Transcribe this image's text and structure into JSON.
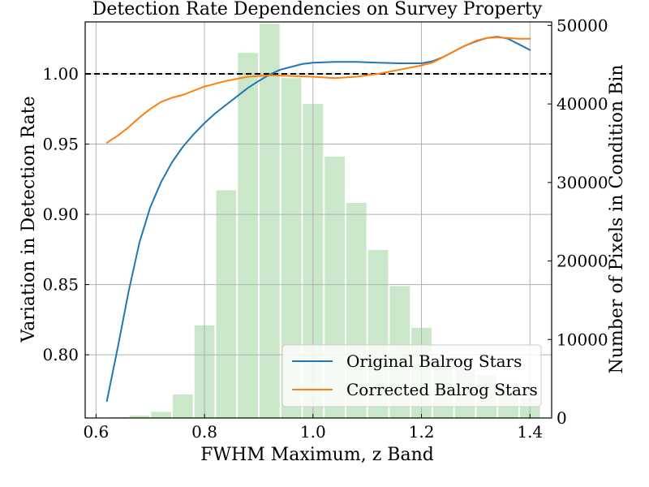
{
  "chart_data": {
    "type": "line",
    "title": "Detection Rate Dependencies on Survey Property",
    "xlabel": "FWHM Maximum, z Band",
    "ylabel": "Variation in Detection Rate",
    "ylabel_right": "Number of Pixels in Condition Bin",
    "xlim": [
      0.58,
      1.44
    ],
    "ylim": [
      0.755,
      1.037
    ],
    "ylim_right": [
      0,
      50450
    ],
    "x_ticks": [
      "0.6",
      "0.8",
      "1.0",
      "1.2",
      "1.4"
    ],
    "y_ticks": [
      "0.80",
      "0.85",
      "0.90",
      "0.95",
      "1.00"
    ],
    "y_ticks_right": [
      "0",
      "10000",
      "20000",
      "30000",
      "40000",
      "50000"
    ],
    "grid": true,
    "reference_line": 1.0,
    "legend_position": "lower-right",
    "series": [
      {
        "name": "Original Balrog Stars",
        "color": "#1f77b4",
        "x": [
          0.62,
          0.64,
          0.66,
          0.68,
          0.7,
          0.72,
          0.74,
          0.76,
          0.78,
          0.8,
          0.82,
          0.84,
          0.86,
          0.88,
          0.9,
          0.92,
          0.94,
          0.96,
          0.98,
          1.0,
          1.04,
          1.08,
          1.12,
          1.16,
          1.2,
          1.22,
          1.24,
          1.26,
          1.28,
          1.3,
          1.32,
          1.34,
          1.36,
          1.38,
          1.4
        ],
        "values": [
          0.767,
          0.805,
          0.845,
          0.88,
          0.905,
          0.923,
          0.937,
          0.948,
          0.957,
          0.965,
          0.972,
          0.978,
          0.984,
          0.99,
          0.995,
          0.9995,
          1.003,
          1.005,
          1.007,
          1.008,
          1.0085,
          1.0085,
          1.008,
          1.0075,
          1.0075,
          1.009,
          1.012,
          1.016,
          1.02,
          1.023,
          1.0255,
          1.0265,
          1.025,
          1.021,
          1.017
        ]
      },
      {
        "name": "Corrected Balrog Stars",
        "color": "#ff7f0e",
        "x": [
          0.62,
          0.64,
          0.66,
          0.68,
          0.7,
          0.72,
          0.74,
          0.76,
          0.8,
          0.84,
          0.88,
          0.92,
          0.96,
          1.0,
          1.04,
          1.08,
          1.12,
          1.16,
          1.2,
          1.22,
          1.24,
          1.26,
          1.28,
          1.3,
          1.32,
          1.34,
          1.36,
          1.38,
          1.4
        ],
        "values": [
          0.951,
          0.956,
          0.962,
          0.969,
          0.975,
          0.98,
          0.983,
          0.985,
          0.991,
          0.995,
          0.998,
          0.999,
          0.9985,
          0.998,
          0.997,
          0.998,
          1.0,
          1.003,
          1.006,
          1.008,
          1.012,
          1.016,
          1.02,
          1.0235,
          1.0255,
          1.026,
          1.0255,
          1.025,
          1.025
        ]
      }
    ],
    "histogram": {
      "color": "#2ca02c",
      "opacity": 0.25,
      "bin_edges": [
        0.62,
        0.66,
        0.7,
        0.74,
        0.78,
        0.82,
        0.86,
        0.9,
        0.94,
        0.98,
        1.02,
        1.06,
        1.1,
        1.14,
        1.18,
        1.22,
        1.26,
        1.3,
        1.34,
        1.38,
        1.42
      ],
      "counts": [
        100,
        300,
        800,
        3000,
        11800,
        29000,
        46500,
        50200,
        43300,
        40000,
        33300,
        27400,
        21400,
        16800,
        11500,
        7500,
        6100,
        5500,
        4500,
        2600
      ]
    }
  }
}
